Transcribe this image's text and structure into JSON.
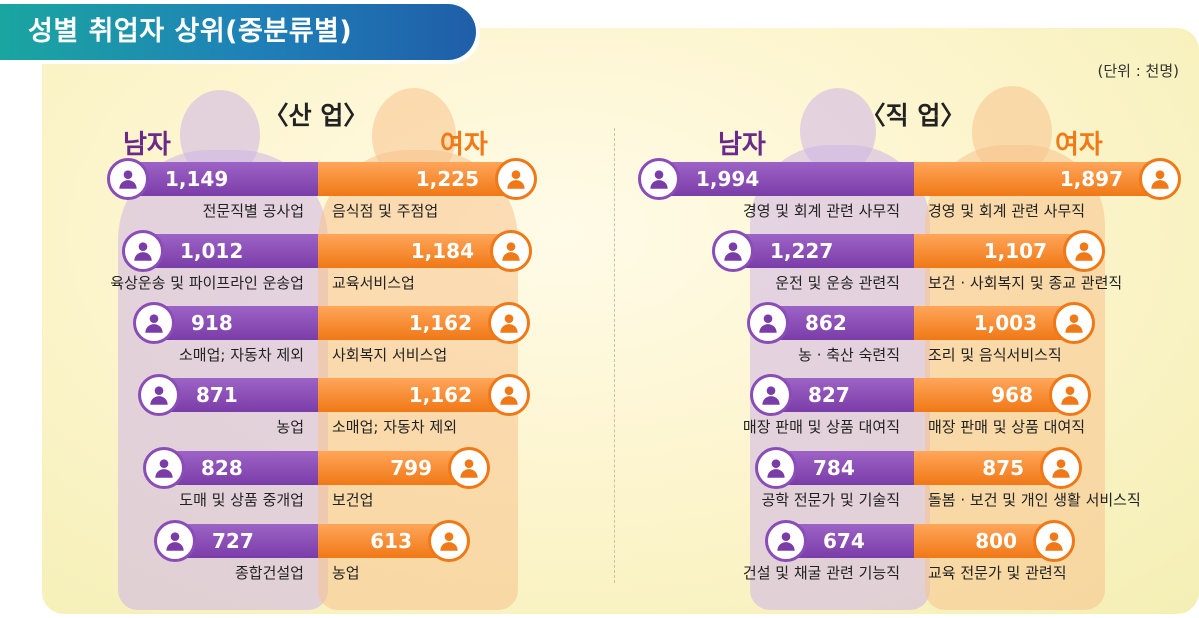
{
  "title": "성별 취업자 상위(중분류별)",
  "unit": "(단위 : 천명)",
  "legend": {
    "male": "남자",
    "female": "여자"
  },
  "colors": {
    "male": "#7a3da8",
    "female": "#f07816",
    "title_bg": "#1f7fb8"
  },
  "chart_data": [
    {
      "type": "bar",
      "title": "〈산 업〉",
      "series": [
        {
          "name": "남자",
          "categories": [
            "전문직별 공사업",
            "육상운송 및 파이프라인 운송업",
            "소매업; 자동차 제외",
            "농업",
            "도매 및 상품 중개업",
            "종합건설업"
          ],
          "values": [
            1149,
            1012,
            918,
            871,
            828,
            727
          ],
          "labels": [
            "1,149",
            "1,012",
            "918",
            "871",
            "828",
            "727"
          ],
          "icons": [
            "excavator-icon",
            "truck-icon",
            "store-icon",
            "wheat-icon",
            "handshake-icon",
            "building-icon"
          ]
        },
        {
          "name": "여자",
          "categories": [
            "음식점 및 주점업",
            "교육서비스업",
            "사회복지 서비스업",
            "소매업; 자동차 제외",
            "보건업",
            "농업"
          ],
          "values": [
            1225,
            1184,
            1162,
            1162,
            799,
            613
          ],
          "labels": [
            "1,225",
            "1,184",
            "1,162",
            "1,162",
            "799",
            "613"
          ],
          "icons": [
            "dining-icon",
            "book-icon",
            "hands-heart-icon",
            "store-icon",
            "medical-kit-icon",
            "wheat-icon"
          ]
        }
      ]
    },
    {
      "type": "bar",
      "title": "〈직 업〉",
      "series": [
        {
          "name": "남자",
          "categories": [
            "경영 및 회계 관련 사무직",
            "운전 및 운송 관련직",
            "농 · 축산 숙련직",
            "매장 판매 및 상품 대여직",
            "공학 전문가 및 기술직",
            "건설 및 채굴 관련 기능직"
          ],
          "values": [
            1994,
            1227,
            862,
            827,
            784,
            674
          ],
          "labels": [
            "1,994",
            "1,227",
            "862",
            "827",
            "784",
            "674"
          ],
          "icons": [
            "office-worker-icon",
            "driver-icon",
            "farmer-icon",
            "cashier-icon",
            "engineer-icon",
            "construction-worker-icon"
          ]
        },
        {
          "name": "여자",
          "categories": [
            "경영 및 회계 관련 사무직",
            "보건 · 사회복지 및 종교 관련직",
            "조리 및 음식서비스직",
            "매장 판매 및 상품 대여직",
            "돌봄 · 보건 및 개인 생활 서비스직",
            "교육 전문가 및 관련직"
          ],
          "values": [
            1897,
            1107,
            1003,
            968,
            875,
            800
          ],
          "labels": [
            "1,897",
            "1,107",
            "1,003",
            "968",
            "875",
            "800"
          ],
          "icons": [
            "office-worker-icon",
            "nurse-icon",
            "chef-icon",
            "cashier-icon",
            "caregiver-icon",
            "teacher-icon"
          ]
        }
      ]
    }
  ]
}
